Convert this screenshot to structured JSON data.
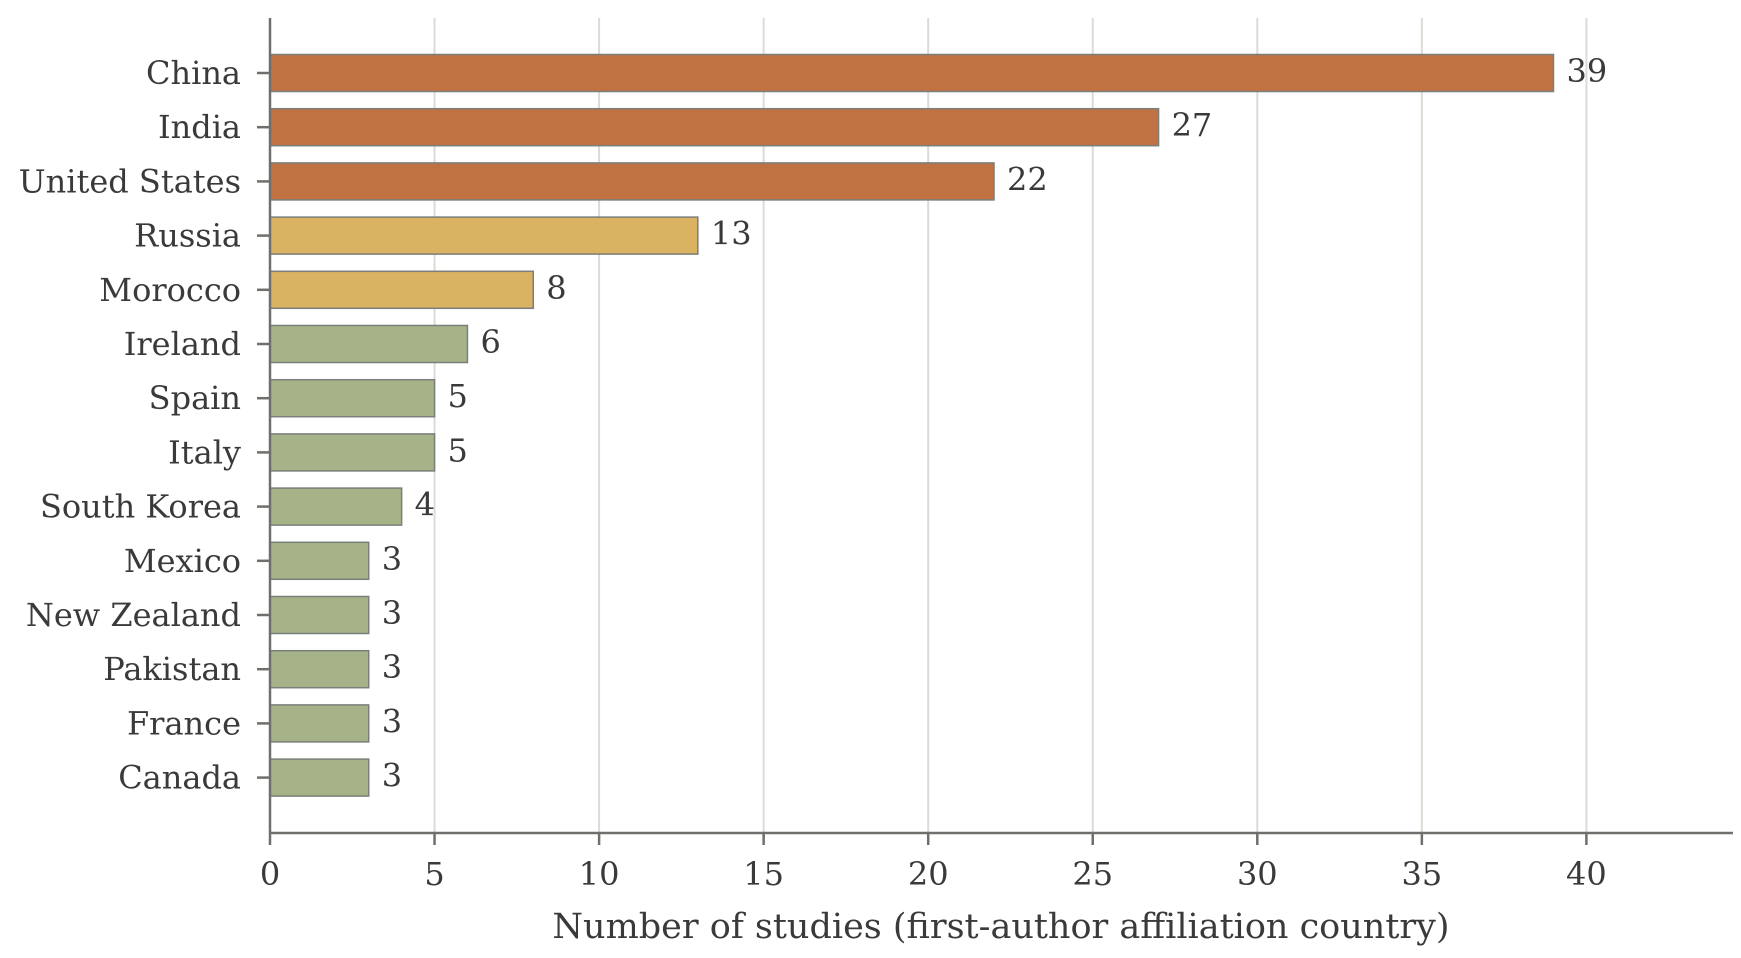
{
  "chart_data": {
    "type": "bar",
    "orientation": "horizontal",
    "categories": [
      "China",
      "India",
      "United States",
      "Russia",
      "Morocco",
      "Ireland",
      "Spain",
      "Italy",
      "South Korea",
      "Mexico",
      "New Zealand",
      "Pakistan",
      "France",
      "Canada"
    ],
    "values": [
      39,
      27,
      22,
      13,
      8,
      6,
      5,
      5,
      4,
      3,
      3,
      3,
      3,
      3
    ],
    "data_labels": [
      "39",
      "27",
      "22",
      "13",
      "8",
      "6",
      "5",
      "5",
      "4",
      "3",
      "3",
      "3",
      "3",
      "3"
    ],
    "bar_color_groups": [
      "top",
      "top",
      "top",
      "mid",
      "mid",
      "low",
      "low",
      "low",
      "low",
      "low",
      "low",
      "low",
      "low",
      "low"
    ],
    "colors": {
      "top": "#C07243",
      "mid": "#D9B262",
      "low": "#A6B388",
      "bar_edge": "#7a7f7a",
      "grid": "#d9dbd4",
      "axis": "#6e706c"
    },
    "title": "",
    "xlabel": "Number of studies (first-author affiliation country)",
    "ylabel": "",
    "xlim": [
      0,
      44.5
    ],
    "xticks": [
      0,
      5,
      10,
      15,
      20,
      25,
      30,
      35,
      40
    ],
    "xtick_labels": [
      "0",
      "5",
      "10",
      "15",
      "20",
      "25",
      "30",
      "35",
      "40"
    ],
    "grid": "vertical",
    "legend": "none"
  }
}
